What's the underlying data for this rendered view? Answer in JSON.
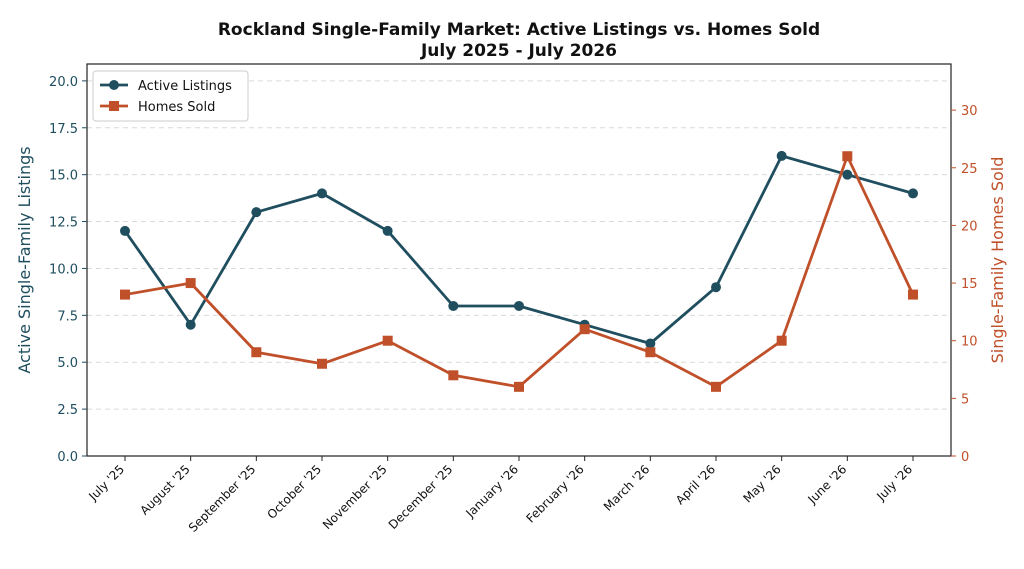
{
  "chart_data": {
    "type": "line",
    "title_line1": "Rockland Single-Family Market: Active Listings vs. Homes Sold",
    "title_line2": "July 2025 - July 2026",
    "categories": [
      "July '25",
      "August '25",
      "September '25",
      "October '25",
      "November '25",
      "December '25",
      "January '26",
      "February '26",
      "March '26",
      "April '26",
      "May '26",
      "June '26",
      "July '26"
    ],
    "y_left": {
      "label": "Active Single-Family Listings",
      "lim": [
        0,
        20.9
      ],
      "ticks": [
        "0.0",
        "2.5",
        "5.0",
        "7.5",
        "10.0",
        "12.5",
        "15.0",
        "17.5",
        "20.0"
      ],
      "tick_values": [
        0,
        2.5,
        5,
        7.5,
        10,
        12.5,
        15,
        17.5,
        20
      ],
      "color": "#1f4e5f"
    },
    "y_right": {
      "label": "Single-Family Homes Sold",
      "lim": [
        0,
        34
      ],
      "ticks": [
        "0",
        "5",
        "10",
        "15",
        "20",
        "25",
        "30"
      ],
      "tick_values": [
        0,
        5,
        10,
        15,
        20,
        25,
        30
      ],
      "color": "#c0502a"
    },
    "grid": true,
    "legend_position": "top-left",
    "series": [
      {
        "name": "Active Listings",
        "axis": "left",
        "marker": "circle",
        "color": "#1f4e5f",
        "values": [
          12,
          7,
          13,
          14,
          12,
          8,
          8,
          7,
          6,
          9,
          16,
          15,
          14
        ]
      },
      {
        "name": "Homes Sold",
        "axis": "right",
        "marker": "square",
        "color": "#c0502a",
        "values": [
          14,
          15,
          9,
          8,
          10,
          7,
          6,
          11,
          9,
          6,
          10,
          26,
          14
        ]
      }
    ]
  }
}
